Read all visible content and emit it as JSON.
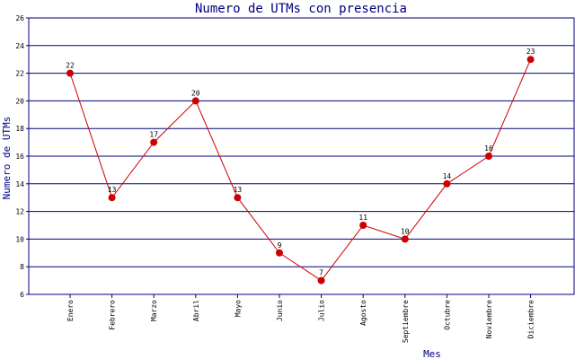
{
  "chart_data": {
    "type": "line",
    "title": "Numero de UTMs con presencia",
    "xlabel": "Mes",
    "ylabel": "Numero de UTMs",
    "categories": [
      "Enero",
      "Febrero",
      "Marzo",
      "Abril",
      "Mayo",
      "Junio",
      "Julio",
      "Agosto",
      "Septiembre",
      "Octubre",
      "Noviembre",
      "Diciembre"
    ],
    "series": [
      {
        "values": [
          22,
          13,
          17,
          20,
          13,
          9,
          7,
          11,
          10,
          14,
          16,
          23
        ]
      }
    ],
    "ylim": [
      6,
      26
    ],
    "yticks": [
      6,
      8,
      10,
      12,
      14,
      16,
      18,
      20,
      22,
      24,
      26
    ],
    "grid": true,
    "colors": {
      "line": "#cc0000",
      "marker": "#cc0000",
      "grid": "#000080",
      "title": "#000080"
    }
  }
}
